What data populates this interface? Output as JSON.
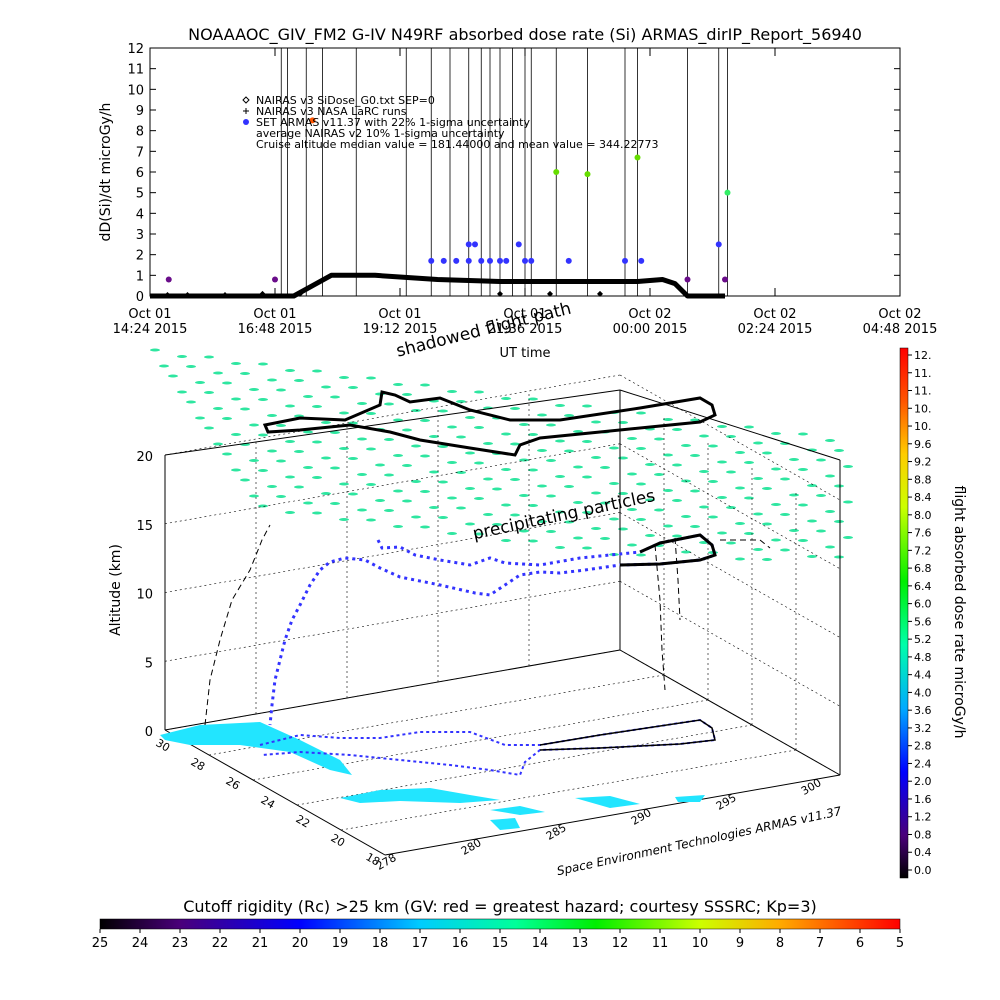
{
  "title": "NOAAAOC_GIV_FM2 G-IV   N49RF  absorbed dose rate (Si) ARMAS_dirIP_Report_56940",
  "chart_data": [
    {
      "type": "scatter",
      "ylabel": "dD(Si)/dt microGy/h",
      "xlabel": "UT time",
      "ylim": [
        0,
        12
      ],
      "yticks": [
        "0",
        "1",
        "2",
        "3",
        "4",
        "5",
        "6",
        "7",
        "8",
        "9",
        "10",
        "11",
        "12"
      ],
      "xticks": [
        {
          "line1": "Oct 01",
          "line2": "14:24 2015"
        },
        {
          "line1": "Oct 01",
          "line2": "16:48 2015"
        },
        {
          "line1": "Oct 01",
          "line2": "19:12 2015"
        },
        {
          "line1": "Oct 01",
          "line2": "21:36 2015"
        },
        {
          "line1": "Oct 02",
          "line2": "00:00 2015"
        },
        {
          "line1": "Oct 02",
          "line2": "02:24 2015"
        },
        {
          "line1": "Oct 02",
          "line2": "04:48 2015"
        }
      ],
      "legend": [
        {
          "symbol": "diamond",
          "label": "NAIRAS v3 SiDose_G0.txt SEP=0"
        },
        {
          "symbol": "plus",
          "label": "NAIRAS v3 NASA LaRC runs"
        },
        {
          "symbol": "dot",
          "label": "SET ARMAS v11.37 with 22% 1-sigma uncertainty"
        },
        {
          "symbol": "none",
          "label": "average NAIRAS v2 10% 1-sigma uncertainty"
        },
        {
          "symbol": "none",
          "label": "Cruise altitude median value = 181.44000 and mean value = 344.22773"
        }
      ],
      "series": [
        {
          "name": "NAIRAS v3 SiDose_G0.txt SEP=0",
          "points": [
            [
              0.14,
              0.05
            ],
            [
              0.3,
              0.05
            ],
            [
              0.6,
              0.05
            ],
            [
              0.9,
              0.1
            ],
            [
              1.2,
              0.1
            ],
            [
              2.8,
              0.1
            ],
            [
              3.2,
              0.1
            ],
            [
              3.6,
              0.1
            ]
          ]
        },
        {
          "name": "NAIRAS v3 NASA LaRC runs",
          "points": []
        },
        {
          "name": "SET ARMAS v11.37 with 22% 1-sigma uncertainty",
          "points": [
            [
              0.15,
              0.8
            ],
            [
              1.0,
              0.8
            ],
            [
              1.3,
              8.5
            ],
            [
              2.25,
              1.7
            ],
            [
              2.35,
              1.7
            ],
            [
              2.45,
              1.7
            ],
            [
              2.55,
              1.7
            ],
            [
              2.65,
              1.7
            ],
            [
              2.55,
              2.5
            ],
            [
              2.6,
              2.5
            ],
            [
              2.72,
              1.7
            ],
            [
              2.8,
              1.7
            ],
            [
              2.85,
              1.7
            ],
            [
              2.95,
              2.5
            ],
            [
              3.0,
              1.7
            ],
            [
              3.05,
              1.7
            ],
            [
              3.25,
              6.0
            ],
            [
              3.35,
              1.7
            ],
            [
              3.5,
              5.9
            ],
            [
              3.8,
              1.7
            ],
            [
              3.9,
              6.7
            ],
            [
              3.93,
              1.7
            ],
            [
              4.3,
              0.8
            ],
            [
              4.55,
              2.5
            ],
            [
              4.6,
              0.8
            ],
            [
              4.62,
              5.0
            ]
          ]
        }
      ],
      "cruise_curve": [
        [
          0.0,
          0.0
        ],
        [
          0.6,
          0.0
        ],
        [
          1.15,
          0.0
        ],
        [
          1.3,
          0.5
        ],
        [
          1.45,
          1.0
        ],
        [
          1.8,
          1.0
        ],
        [
          2.3,
          0.8
        ],
        [
          2.8,
          0.7
        ],
        [
          3.3,
          0.7
        ],
        [
          3.9,
          0.7
        ],
        [
          4.1,
          0.8
        ],
        [
          4.2,
          0.6
        ],
        [
          4.3,
          0.0
        ],
        [
          4.6,
          0.0
        ]
      ]
    },
    {
      "type": "scatter",
      "zlabel": "Altitude (km)",
      "zticks": [
        "0",
        "5",
        "10",
        "15",
        "20"
      ],
      "lat_ticks": [
        "30",
        "28",
        "26",
        "24",
        "22",
        "20",
        "18"
      ],
      "lon_ticks": [
        "278",
        "280",
        "285",
        "290",
        "295",
        "300"
      ],
      "annotations": [
        "precipitating particles",
        "shadowed flight path"
      ],
      "credit": "Space Environment Technologies ARMAS v11.37",
      "colorbar_right": {
        "label": "flight absorbed dose rate microGy/h",
        "ticks": [
          "12.",
          "11.",
          "11.",
          "10.",
          "10.",
          "9.6",
          "9.2",
          "8.8",
          "8.4",
          "8.0",
          "7.6",
          "7.2",
          "6.8",
          "6.4",
          "6.0",
          "5.6",
          "5.2",
          "4.8",
          "4.4",
          "4.0",
          "3.6",
          "3.2",
          "2.8",
          "2.4",
          "2.0",
          "1.6",
          "1.2",
          "0.8",
          "0.4",
          "0.0"
        ]
      },
      "colorbar_bottom": {
        "label": "Cutoff rigidity (Rc) >25 km (GV: red = greatest hazard; courtesy SSSRC; Kp=3)",
        "ticks": [
          "25",
          "24",
          "23",
          "22",
          "21",
          "20",
          "19",
          "18",
          "17",
          "16",
          "15",
          "14",
          "13",
          "12",
          "11",
          "10",
          "9",
          "8",
          "7",
          "6",
          "5"
        ]
      }
    }
  ],
  "colors": {
    "cruise": "#000000",
    "precip": "#2ee6a0",
    "land": "#22e5ff",
    "series_blue": "#3333ff",
    "series_purple": "#6a0d8a"
  }
}
